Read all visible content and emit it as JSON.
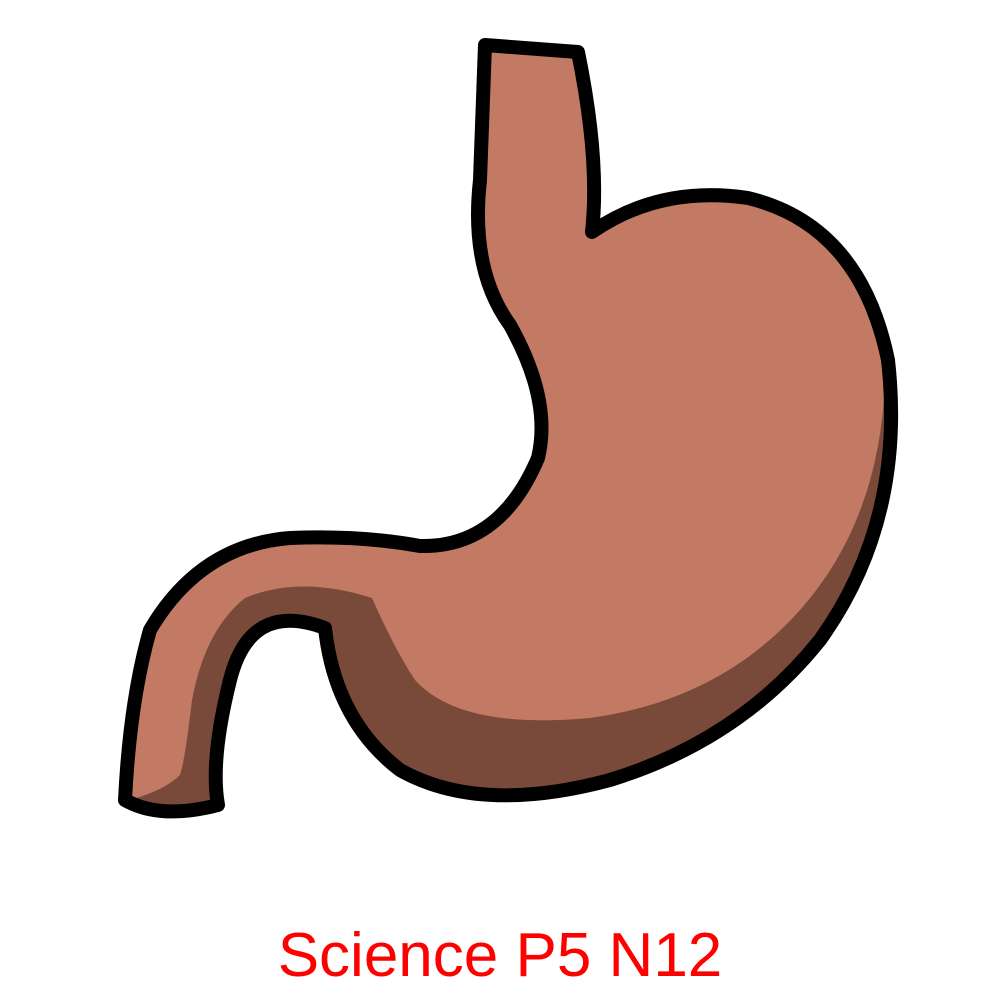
{
  "caption": {
    "text": "Science P5 N12",
    "color": "#ff0000"
  },
  "illustration": {
    "icon": "stomach-icon",
    "colors": {
      "body": "#c27a64",
      "shadow": "#794a3a",
      "outline": "#000000",
      "background": "#ffffff"
    }
  }
}
